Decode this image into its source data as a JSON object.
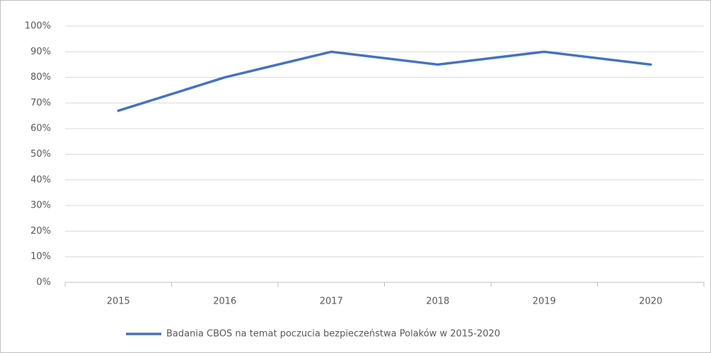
{
  "chart_data": {
    "type": "line",
    "categories": [
      "2015",
      "2016",
      "2017",
      "2018",
      "2019",
      "2020"
    ],
    "series": [
      {
        "name": "Badania CBOS na temat poczucia bezpieczeństwa Polaków w 2015-2020",
        "color": "#4472c4",
        "values": [
          67,
          80,
          90,
          85,
          90,
          85
        ]
      }
    ],
    "ylim": [
      0,
      100
    ],
    "yticks": [
      {
        "value": 0,
        "label": "0%"
      },
      {
        "value": 10,
        "label": "10%"
      },
      {
        "value": 20,
        "label": "20%"
      },
      {
        "value": 30,
        "label": "30%"
      },
      {
        "value": 40,
        "label": "40%"
      },
      {
        "value": 50,
        "label": "50%"
      },
      {
        "value": 60,
        "label": "60%"
      },
      {
        "value": 70,
        "label": "70%"
      },
      {
        "value": 80,
        "label": "80%"
      },
      {
        "value": 90,
        "label": "90%"
      },
      {
        "value": 100,
        "label": "100%"
      }
    ],
    "grid": true,
    "legend": "bottom"
  }
}
